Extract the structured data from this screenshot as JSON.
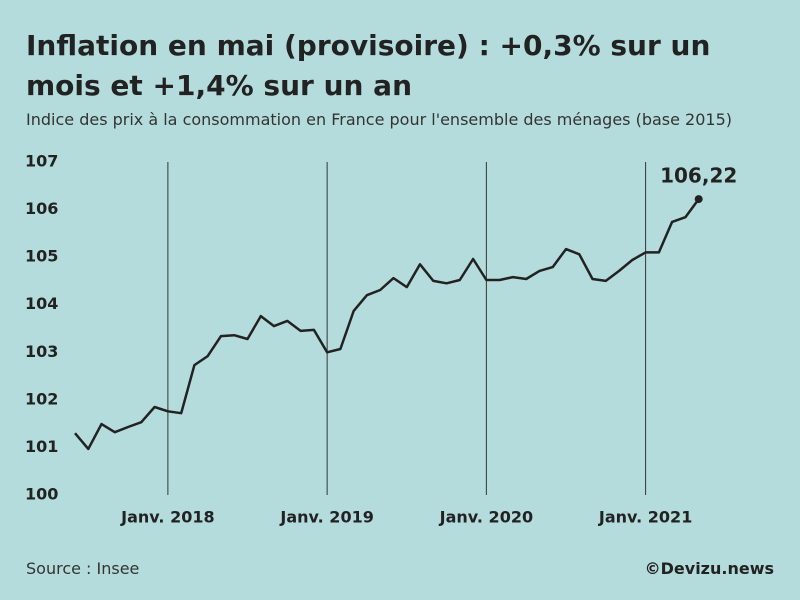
{
  "chart_data": {
    "type": "line",
    "title": "Inflation en mai (provisoire) : +0,3% sur un mois et +1,4% sur un an",
    "subtitle": "Indice des prix à la consommation en France pour l'ensemble des ménages (base 2015)",
    "source": "Source : Insee",
    "credit": "©Devizu.news",
    "categories": [
      null,
      null,
      null,
      null,
      null,
      null,
      null,
      "Janv. 2018",
      null,
      null,
      null,
      null,
      null,
      null,
      null,
      null,
      null,
      null,
      null,
      "Janv. 2019",
      null,
      null,
      null,
      null,
      null,
      null,
      null,
      null,
      null,
      null,
      null,
      "Janv. 2020",
      null,
      null,
      null,
      null,
      null,
      null,
      null,
      null,
      null,
      null,
      null,
      "Janv. 2021",
      null,
      null,
      null,
      null
    ],
    "values": [
      101.3,
      100.97,
      101.49,
      101.32,
      101.43,
      101.53,
      101.85,
      101.76,
      101.72,
      102.73,
      102.92,
      103.34,
      103.36,
      103.28,
      103.76,
      103.55,
      103.66,
      103.45,
      103.47,
      103.0,
      103.07,
      103.87,
      104.2,
      104.31,
      104.56,
      104.37,
      104.85,
      104.5,
      104.45,
      104.52,
      104.96,
      104.52,
      104.52,
      104.58,
      104.54,
      104.71,
      104.79,
      105.17,
      105.06,
      104.54,
      104.5,
      104.71,
      104.94,
      105.1,
      105.1,
      105.74,
      105.84,
      106.22
    ],
    "value_labels": [
      null,
      null,
      null,
      null,
      null,
      null,
      null,
      null,
      null,
      null,
      null,
      null,
      null,
      null,
      null,
      null,
      null,
      null,
      null,
      null,
      null,
      null,
      null,
      null,
      null,
      null,
      null,
      null,
      null,
      null,
      null,
      null,
      null,
      null,
      null,
      null,
      null,
      null,
      null,
      null,
      null,
      null,
      null,
      null,
      null,
      null,
      null,
      "106,22"
    ],
    "color": "#222222",
    "ylim": [
      100,
      107
    ],
    "yticks": [
      100,
      101,
      102,
      103,
      104,
      105,
      106,
      107
    ],
    "x_grid": true
  }
}
